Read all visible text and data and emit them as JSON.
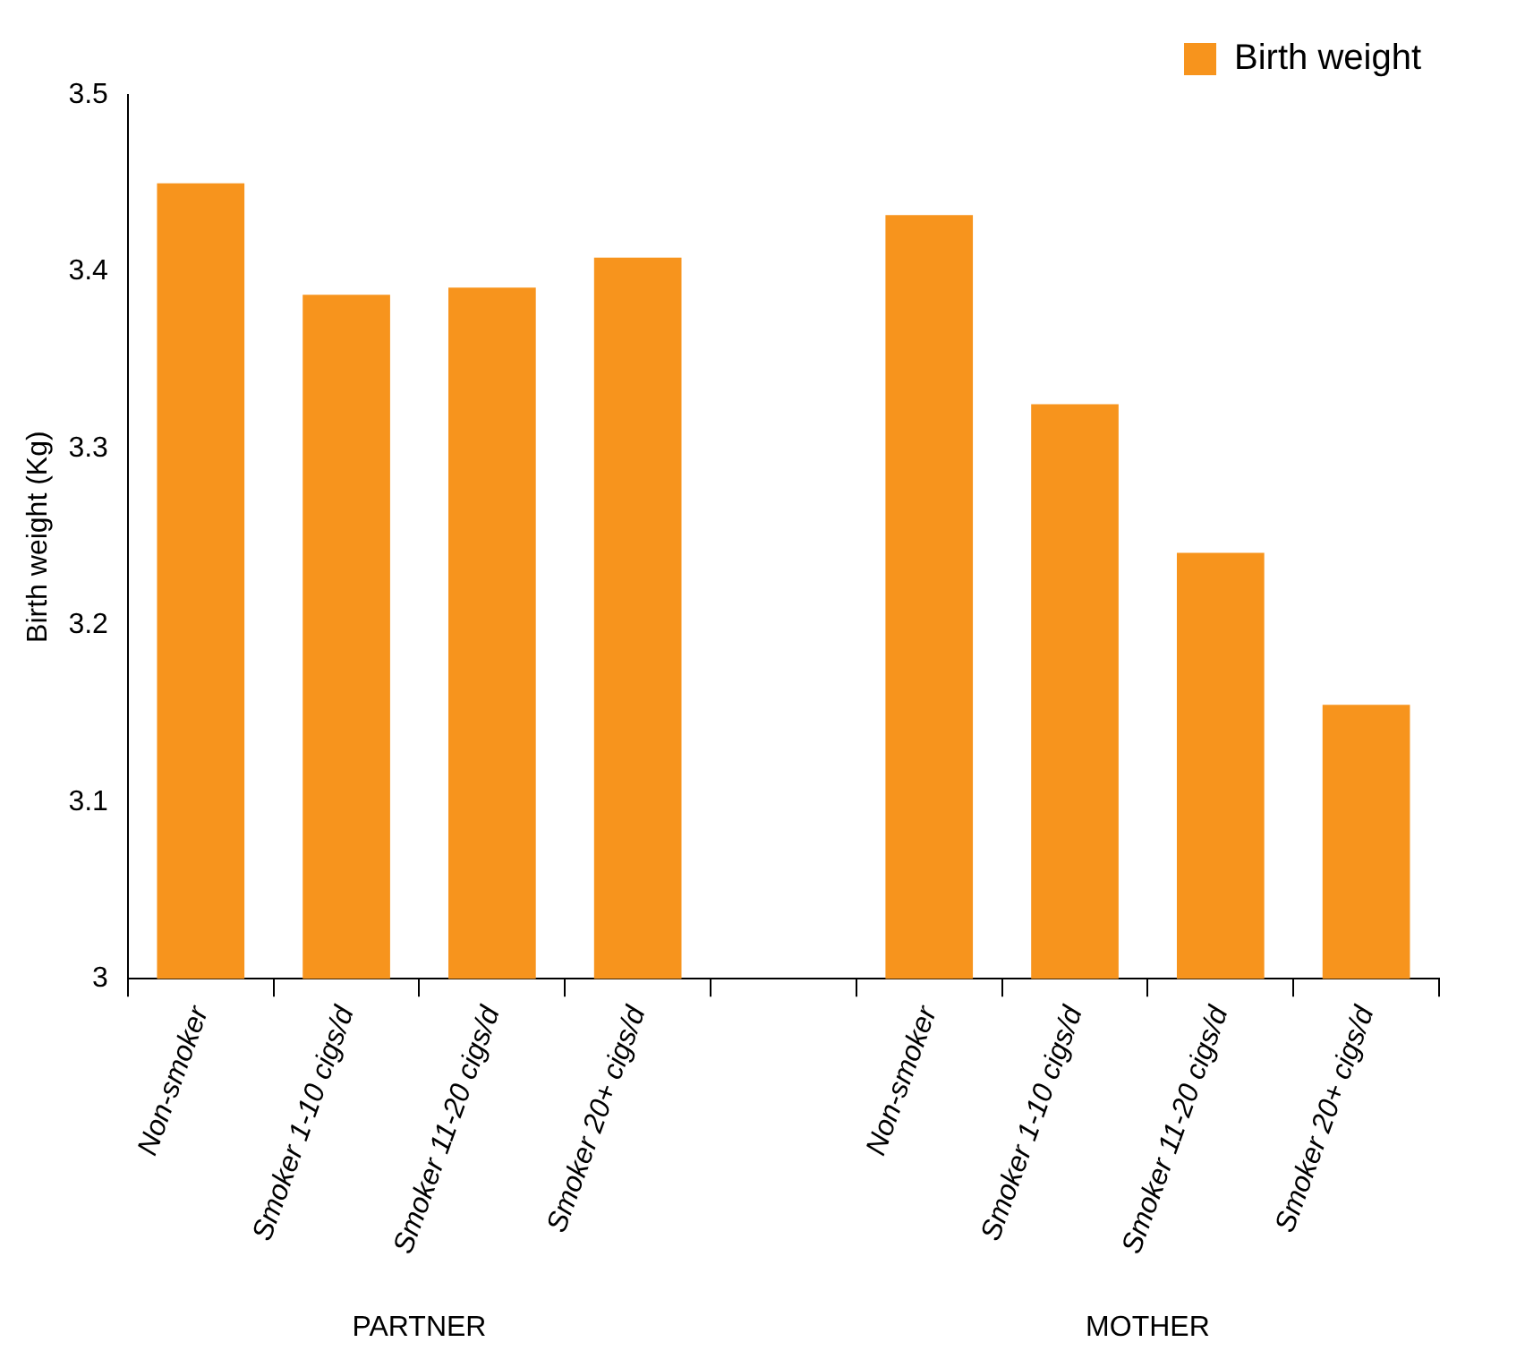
{
  "chart_data": {
    "type": "bar",
    "ylabel": "Birth weight (Kg)",
    "categories": [
      "Non-smoker",
      "Smoker 1-10 cigs/d",
      "Smoker 11-20 cigs/d",
      "Smoker 20+ cigs/d",
      null,
      "Non-smoker",
      "Smoker 1-10 cigs/d",
      "Smoker 11-20 cigs/d",
      "Smoker 20+ cigs/d"
    ],
    "series": [
      {
        "name": "Birth weight",
        "color": "#f7941d",
        "values": [
          3.45,
          3.387,
          3.391,
          3.408,
          null,
          3.432,
          3.325,
          3.241,
          3.155
        ]
      }
    ],
    "ylim": [
      3,
      3.5
    ],
    "yticks": [
      3,
      3.1,
      3.2,
      3.3,
      3.4,
      3.5
    ],
    "legend": "top right",
    "annotations": [
      "PARTNER",
      "MOTHER"
    ]
  }
}
